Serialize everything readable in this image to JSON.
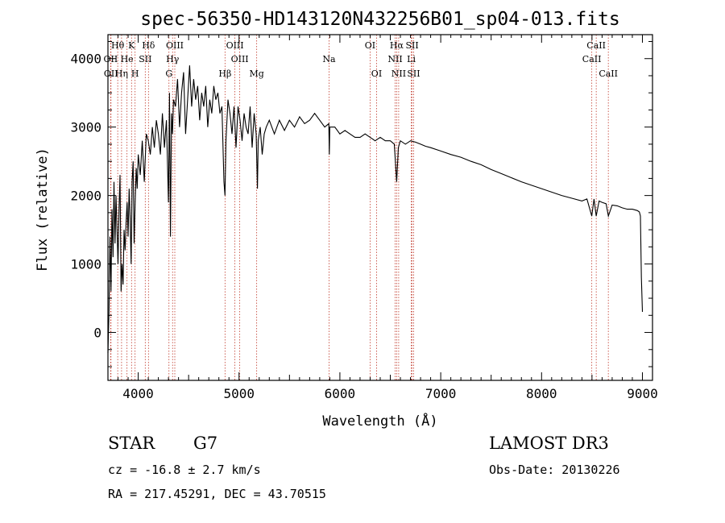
{
  "chart_data": {
    "type": "line",
    "title": "spec-56350-HD143120N432256B01_sp04-013.fits",
    "xlabel": "Wavelength (Å)",
    "ylabel": "Flux (relative)",
    "xlim": [
      3700,
      9100
    ],
    "ylim": [
      -700,
      4350
    ],
    "xticks": [
      4000,
      5000,
      6000,
      7000,
      8000,
      9000
    ],
    "yticks": [
      0,
      1000,
      2000,
      3000,
      4000
    ],
    "series": [
      {
        "name": "spectrum",
        "x": [
          3700,
          3710,
          3720,
          3730,
          3740,
          3750,
          3760,
          3770,
          3780,
          3790,
          3800,
          3810,
          3820,
          3830,
          3840,
          3850,
          3860,
          3870,
          3880,
          3890,
          3900,
          3910,
          3920,
          3930,
          3940,
          3950,
          3960,
          3970,
          3980,
          3990,
          4000,
          4020,
          4040,
          4060,
          4080,
          4100,
          4120,
          4140,
          4160,
          4180,
          4200,
          4220,
          4240,
          4260,
          4280,
          4300,
          4310,
          4320,
          4330,
          4340,
          4350,
          4370,
          4390,
          4410,
          4430,
          4450,
          4470,
          4490,
          4510,
          4530,
          4550,
          4570,
          4590,
          4610,
          4630,
          4650,
          4670,
          4690,
          4710,
          4730,
          4750,
          4770,
          4790,
          4810,
          4830,
          4850,
          4861,
          4870,
          4890,
          4910,
          4930,
          4950,
          4970,
          4990,
          5010,
          5030,
          5050,
          5070,
          5090,
          5110,
          5130,
          5150,
          5170,
          5183,
          5190,
          5210,
          5230,
          5250,
          5270,
          5300,
          5350,
          5400,
          5450,
          5500,
          5550,
          5600,
          5650,
          5700,
          5750,
          5800,
          5850,
          5890,
          5895,
          5900,
          5950,
          6000,
          6050,
          6100,
          6150,
          6200,
          6250,
          6300,
          6350,
          6400,
          6450,
          6500,
          6540,
          6563,
          6580,
          6600,
          6650,
          6700,
          6750,
          6800,
          6850,
          6900,
          7000,
          7100,
          7200,
          7300,
          7400,
          7500,
          7600,
          7700,
          7800,
          7900,
          8000,
          8100,
          8200,
          8300,
          8400,
          8450,
          8498,
          8520,
          8542,
          8570,
          8600,
          8640,
          8662,
          8700,
          8750,
          8800,
          8850,
          8900,
          8950,
          8970,
          8980,
          8990,
          9000
        ],
        "values": [
          -300,
          300,
          1400,
          600,
          1800,
          1100,
          2200,
          1300,
          2000,
          1500,
          1000,
          1800,
          2300,
          600,
          1000,
          700,
          1500,
          1200,
          1600,
          1900,
          1400,
          2100,
          1700,
          1000,
          2200,
          2500,
          1300,
          1900,
          2400,
          2100,
          2600,
          2300,
          2800,
          2200,
          2900,
          2800,
          2600,
          3000,
          2700,
          3100,
          2900,
          2600,
          3200,
          2700,
          3100,
          1900,
          3500,
          1400,
          3200,
          2900,
          3400,
          3300,
          3700,
          3000,
          3500,
          3800,
          2900,
          3400,
          3900,
          3300,
          3700,
          3400,
          3600,
          3100,
          3500,
          3300,
          3600,
          3000,
          3400,
          3200,
          3600,
          3400,
          3500,
          3200,
          3300,
          2200,
          2000,
          2800,
          3400,
          3200,
          2900,
          3300,
          2700,
          3300,
          3100,
          2800,
          3200,
          3000,
          2900,
          3300,
          2700,
          3200,
          2900,
          2100,
          2800,
          3000,
          2600,
          2900,
          3000,
          3100,
          2900,
          3100,
          2950,
          3100,
          3000,
          3150,
          3050,
          3100,
          3200,
          3100,
          3000,
          3050,
          2600,
          3000,
          3000,
          2900,
          2950,
          2900,
          2850,
          2850,
          2900,
          2850,
          2800,
          2850,
          2800,
          2800,
          2750,
          2200,
          2700,
          2800,
          2750,
          2800,
          2780,
          2750,
          2720,
          2700,
          2650,
          2600,
          2560,
          2500,
          2450,
          2380,
          2320,
          2260,
          2200,
          2150,
          2100,
          2050,
          2000,
          1960,
          1920,
          1950,
          1700,
          1950,
          1700,
          1920,
          1900,
          1880,
          1700,
          1860,
          1850,
          1820,
          1800,
          1800,
          1780,
          1760,
          1700,
          800,
          300
        ]
      }
    ],
    "lines": [
      {
        "label": "Hθ",
        "x": 3797,
        "row": 1
      },
      {
        "label": "OII",
        "x": 3727,
        "row": 2
      },
      {
        "label": "OII",
        "x": 3730,
        "row": 3
      },
      {
        "label": "K",
        "x": 3934,
        "row": 1
      },
      {
        "label": "He",
        "x": 3889,
        "row": 2
      },
      {
        "label": "Hη",
        "x": 3835,
        "row": 3
      },
      {
        "label": "Hδ",
        "x": 4102,
        "row": 1
      },
      {
        "label": "SII",
        "x": 4070,
        "row": 2
      },
      {
        "label": "H",
        "x": 3969,
        "row": 3
      },
      {
        "label": "OIII",
        "x": 4363,
        "row": 1
      },
      {
        "label": "Hγ",
        "x": 4341,
        "row": 2
      },
      {
        "label": "G",
        "x": 4305,
        "row": 3
      },
      {
        "label": "OIII",
        "x": 4959,
        "row": 1
      },
      {
        "label": "OIII",
        "x": 5007,
        "row": 2
      },
      {
        "label": "Hβ",
        "x": 4861,
        "row": 3
      },
      {
        "label": "Mg",
        "x": 5175,
        "row": 3
      },
      {
        "label": "Na",
        "x": 5893,
        "row": 2
      },
      {
        "label": "OI",
        "x": 6300,
        "row": 1
      },
      {
        "label": "OI",
        "x": 6364,
        "row": 3
      },
      {
        "label": "Hα",
        "x": 6563,
        "row": 1
      },
      {
        "label": "SII",
        "x": 6716,
        "row": 1
      },
      {
        "label": "NII",
        "x": 6548,
        "row": 2
      },
      {
        "label": "Li",
        "x": 6708,
        "row": 2
      },
      {
        "label": "NII",
        "x": 6583,
        "row": 3
      },
      {
        "label": "SII",
        "x": 6731,
        "row": 3
      },
      {
        "label": "CaII",
        "x": 8542,
        "row": 1
      },
      {
        "label": "CaII",
        "x": 8498,
        "row": 2
      },
      {
        "label": "CaII",
        "x": 8662,
        "row": 3
      }
    ]
  },
  "info": {
    "object_class": "STAR",
    "subclass": "G7",
    "survey": "LAMOST DR3",
    "redshift": "cz = -16.8 ± 2.7 km/s",
    "obs_date": "Obs-Date: 20130226",
    "coords": "RA = 217.45291, DEC =  43.70515"
  }
}
